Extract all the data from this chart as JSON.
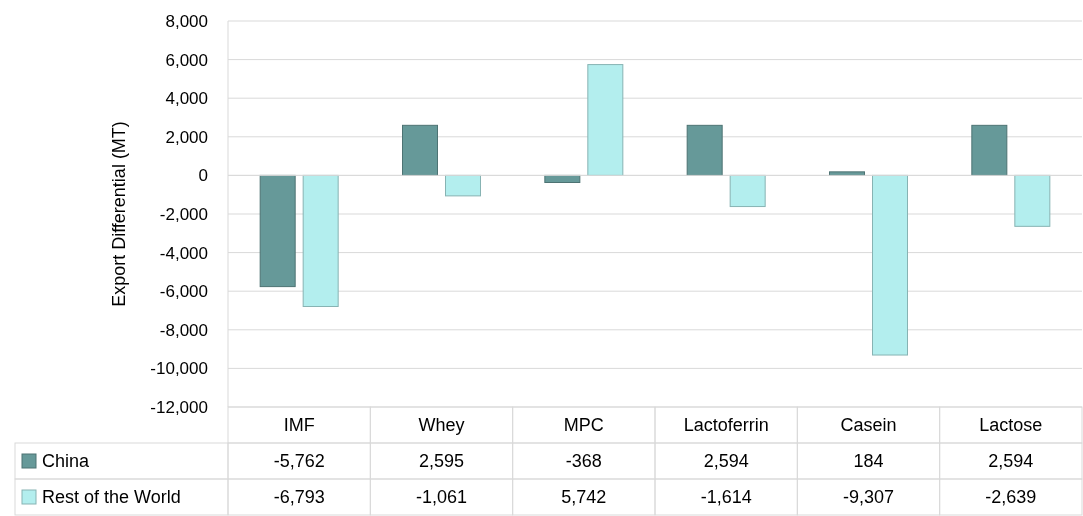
{
  "chart_data": {
    "type": "bar",
    "ylabel": "Export Differential (MT)",
    "categories": [
      "IMF",
      "Whey",
      "MPC",
      "Lactoferrin",
      "Casein",
      "Lactose"
    ],
    "series": [
      {
        "name": "China",
        "color": "#669999",
        "values": [
          -5762,
          2595,
          -368,
          2594,
          184,
          2594
        ],
        "value_labels": [
          "-5,762",
          "2,595",
          "-368",
          "2,594",
          "184",
          "2,594"
        ]
      },
      {
        "name": "Rest of the World",
        "color": "#b3eeee",
        "values": [
          -6793,
          -1061,
          5742,
          -1614,
          -9307,
          -2639
        ],
        "value_labels": [
          "-6,793",
          "-1,061",
          "5,742",
          "-1,614",
          "-9,307",
          "-2,639"
        ]
      }
    ],
    "ylim": [
      -12000,
      8000
    ],
    "yticks": [
      {
        "value": -12000,
        "label": "-12,000"
      },
      {
        "value": -10000,
        "label": "-10,000"
      },
      {
        "value": -8000,
        "label": "-8,000"
      },
      {
        "value": -6000,
        "label": "-6,000"
      },
      {
        "value": -4000,
        "label": "-4,000"
      },
      {
        "value": -2000,
        "label": "-2,000"
      },
      0,
      {
        "value": 2000,
        "label": "2,000"
      },
      {
        "value": 4000,
        "label": "4,000"
      },
      {
        "value": 6000,
        "label": "6,000"
      },
      {
        "value": 8000,
        "label": "8,000"
      }
    ],
    "grid": "y",
    "legend": "bottom"
  }
}
